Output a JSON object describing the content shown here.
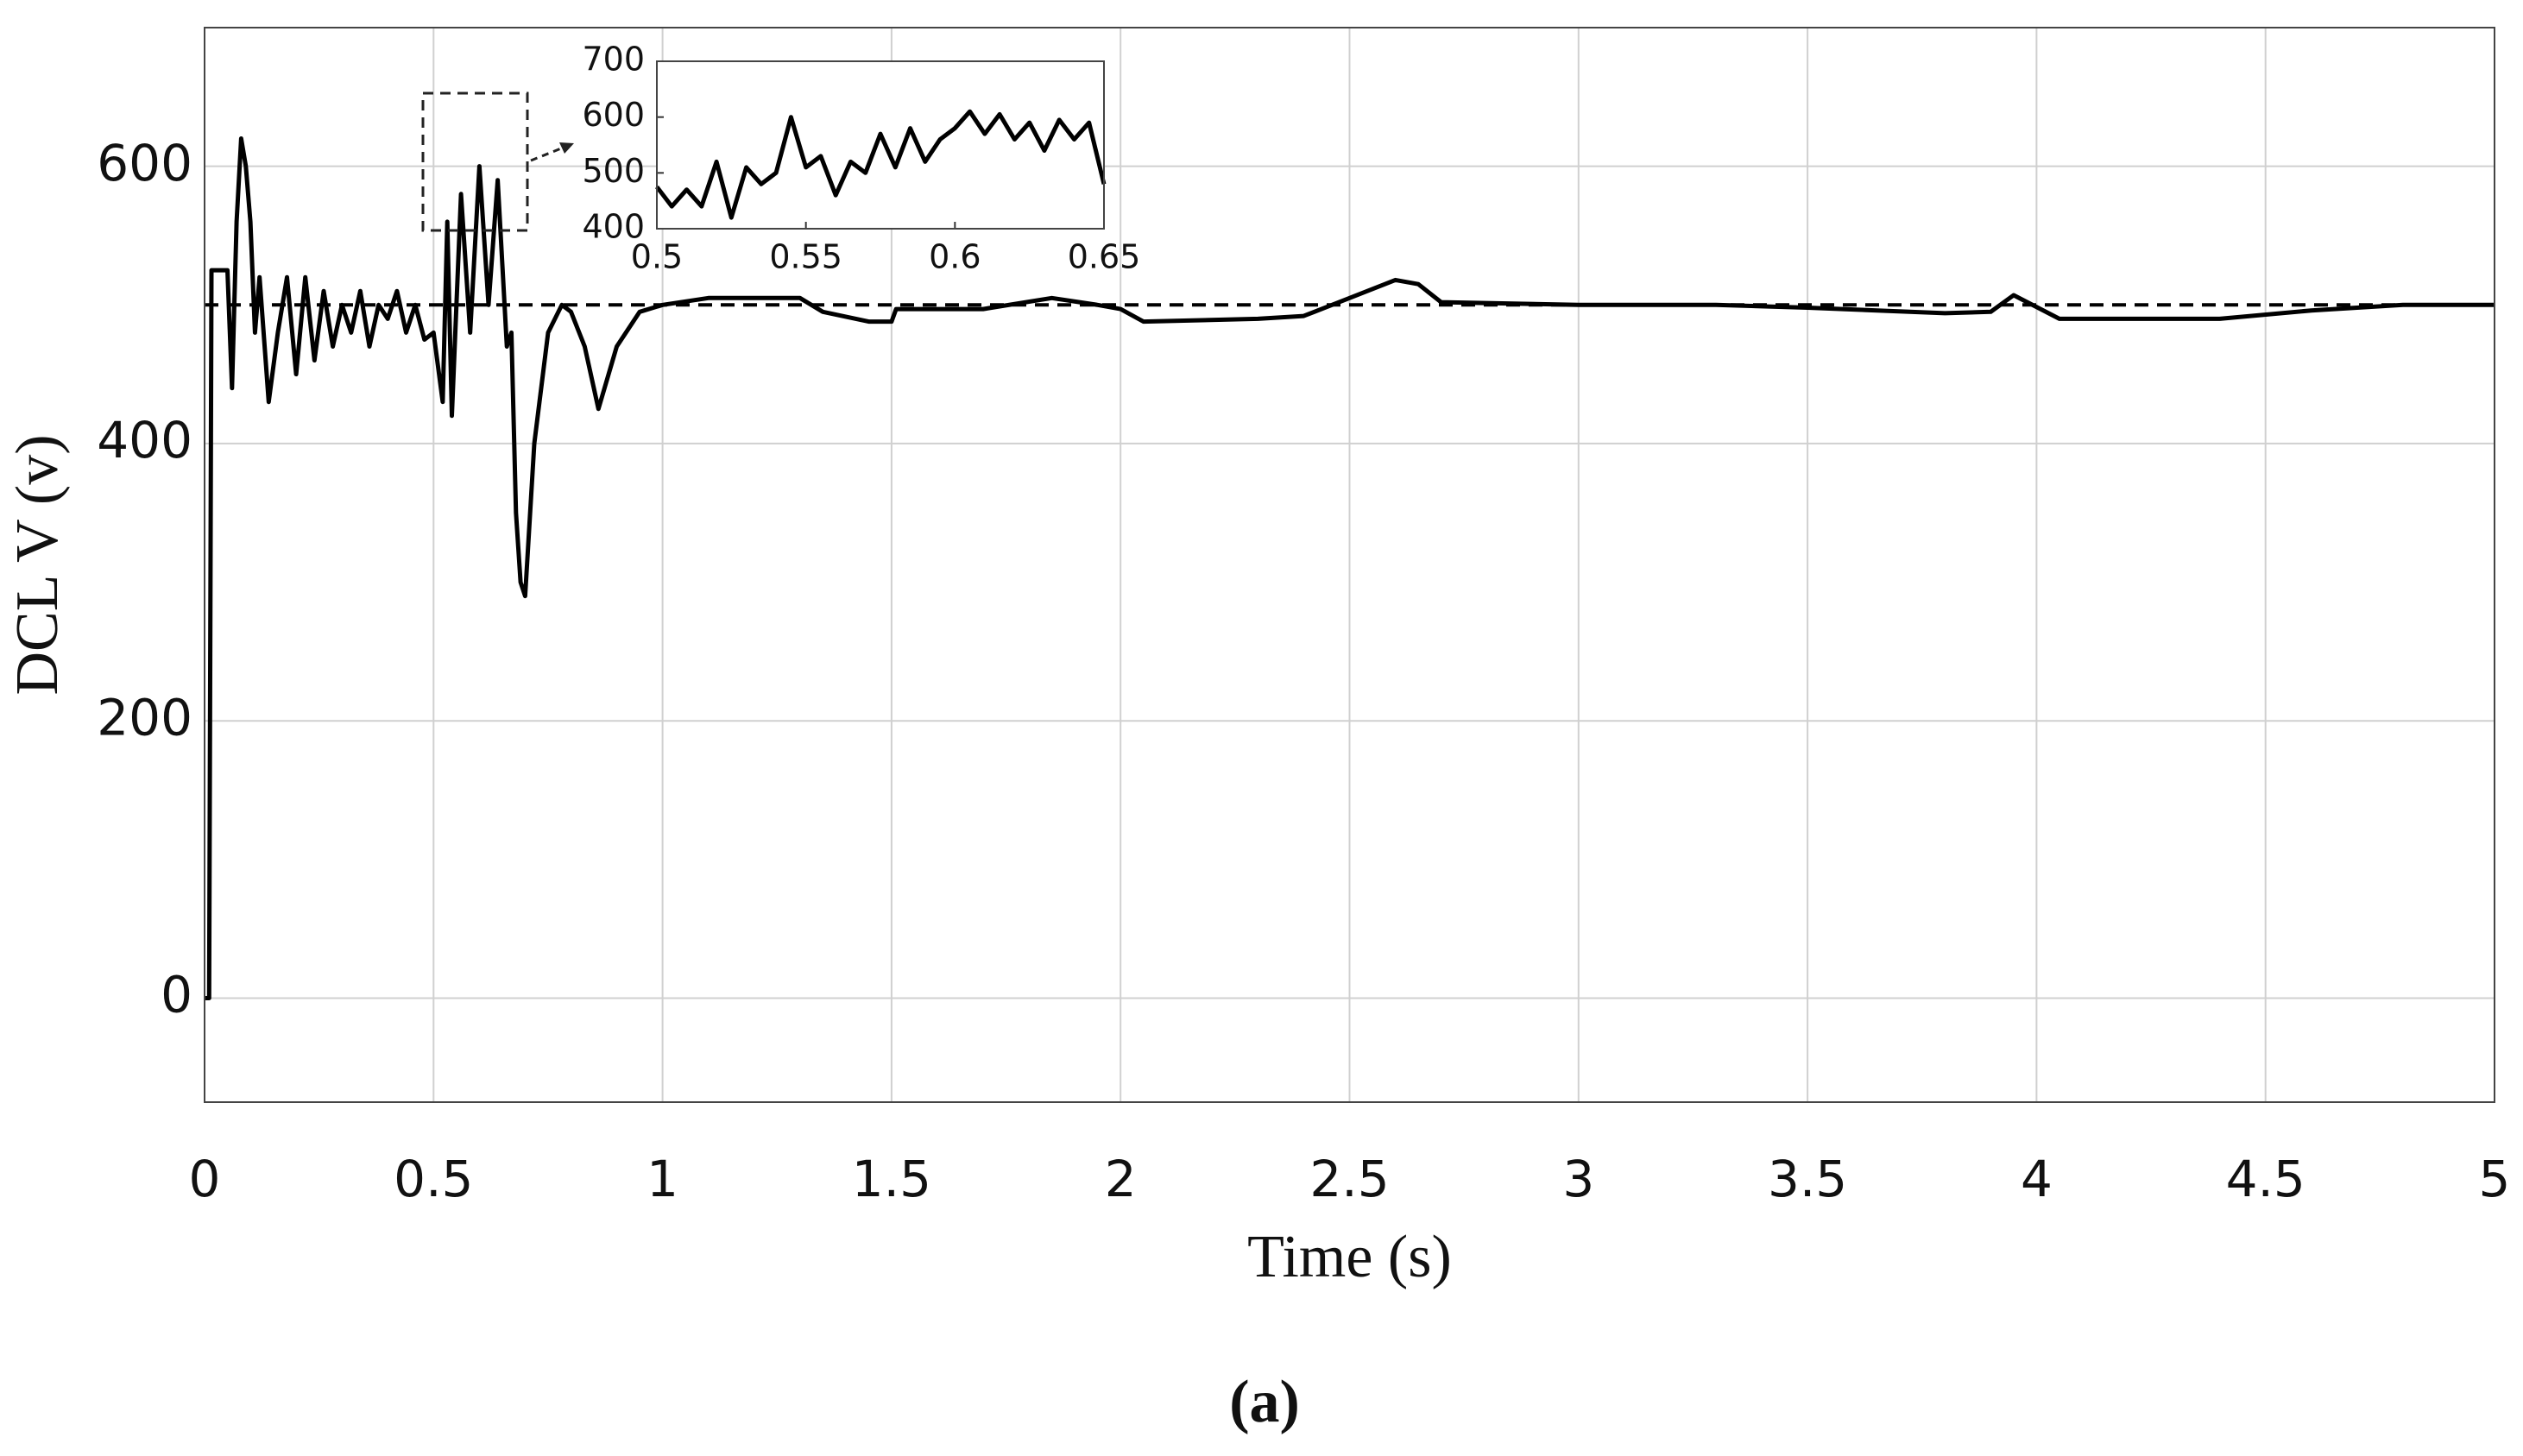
{
  "chart_data": [
    {
      "type": "line",
      "ylabel": "DCL V (v)",
      "xlabel": "Time (s)",
      "caption": "(a)",
      "xlim": [
        0,
        5
      ],
      "xticks": [
        0,
        0.5,
        1,
        1.5,
        2,
        2.5,
        3,
        3.5,
        4,
        4.5,
        5
      ],
      "ylim": [
        -75,
        700
      ],
      "yticks": [
        0,
        200,
        400,
        600
      ],
      "grid": true,
      "x": [
        0,
        0.01,
        0.015,
        0.05,
        0.06,
        0.07,
        0.08,
        0.09,
        0.1,
        0.11,
        0.12,
        0.14,
        0.16,
        0.18,
        0.2,
        0.22,
        0.24,
        0.26,
        0.28,
        0.3,
        0.32,
        0.34,
        0.36,
        0.38,
        0.4,
        0.42,
        0.44,
        0.46,
        0.48,
        0.5,
        0.52,
        0.53,
        0.54,
        0.56,
        0.58,
        0.6,
        0.62,
        0.64,
        0.66,
        0.67,
        0.68,
        0.69,
        0.7,
        0.72,
        0.75,
        0.78,
        0.8,
        0.83,
        0.86,
        0.9,
        0.95,
        1.0,
        1.1,
        1.3,
        1.35,
        1.45,
        1.5,
        1.51,
        1.7,
        1.85,
        1.95,
        2.0,
        2.05,
        2.3,
        2.4,
        2.5,
        2.6,
        2.65,
        2.7,
        3.0,
        3.3,
        3.5,
        3.8,
        3.9,
        3.95,
        4.05,
        4.3,
        4.4,
        4.6,
        4.8,
        5.0
      ],
      "series": [
        {
          "color": "#000000",
          "style": "solid",
          "values": [
            0,
            0,
            525,
            525,
            440,
            560,
            620,
            600,
            560,
            480,
            520,
            430,
            480,
            520,
            450,
            520,
            460,
            510,
            470,
            500,
            480,
            510,
            470,
            500,
            490,
            510,
            480,
            500,
            475,
            480,
            430,
            560,
            420,
            580,
            480,
            600,
            500,
            590,
            470,
            480,
            350,
            300,
            290,
            400,
            480,
            500,
            495,
            470,
            425,
            470,
            495,
            500,
            505,
            505,
            495,
            488,
            488,
            497,
            497,
            505,
            500,
            497,
            488,
            490,
            492,
            505,
            518,
            515,
            502,
            500,
            500,
            498,
            494,
            495,
            507,
            490,
            490,
            490,
            496,
            500,
            500
          ]
        },
        {
          "color": "#000000",
          "style": "dashed",
          "x": [
            0,
            5
          ],
          "values": [
            500,
            500
          ]
        }
      ]
    },
    {
      "type": "line",
      "xlim": [
        0.5,
        0.65
      ],
      "xticks": [
        0.5,
        0.55,
        0.6,
        0.65
      ],
      "ylim": [
        400,
        700
      ],
      "yticks": [
        400,
        500,
        600,
        700
      ],
      "grid": false,
      "x": [
        0.5,
        0.505,
        0.51,
        0.515,
        0.52,
        0.525,
        0.53,
        0.535,
        0.54,
        0.545,
        0.55,
        0.555,
        0.56,
        0.565,
        0.57,
        0.575,
        0.58,
        0.585,
        0.59,
        0.595,
        0.6,
        0.605,
        0.61,
        0.615,
        0.62,
        0.625,
        0.63,
        0.635,
        0.64,
        0.645,
        0.65
      ],
      "series": [
        {
          "color": "#000000",
          "style": "solid",
          "values": [
            475,
            440,
            470,
            440,
            520,
            420,
            510,
            480,
            500,
            600,
            510,
            530,
            460,
            520,
            500,
            570,
            510,
            580,
            520,
            560,
            580,
            610,
            570,
            605,
            560,
            590,
            540,
            595,
            560,
            590,
            480
          ]
        }
      ]
    }
  ]
}
